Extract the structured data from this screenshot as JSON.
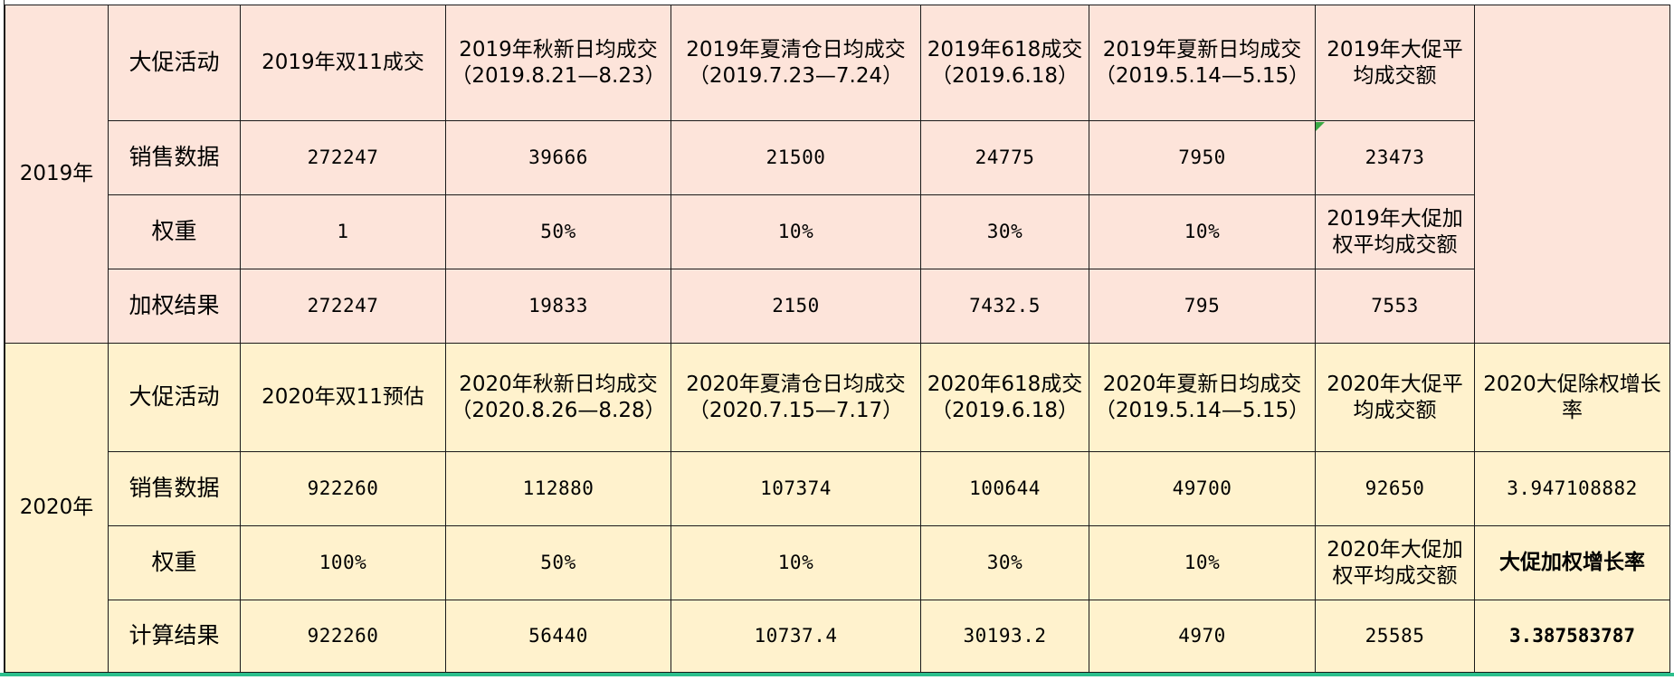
{
  "section_2019": {
    "year": "2019年",
    "activity_row": {
      "label": "大促活动",
      "cells": [
        "2019年双11成交",
        "2019年秋新日均成交（2019.8.21—8.23）",
        "2019年夏清仓日均成交（2019.7.23—7.24）",
        "2019年618成交（2019.6.18）",
        "2019年夏新日均成交（2019.5.14—5.15）",
        "2019年大促平均成交额"
      ]
    },
    "sales_row": {
      "label": "销售数据",
      "cells": [
        "272247",
        "39666",
        "21500",
        "24775",
        "7950",
        "23473"
      ]
    },
    "weight_row": {
      "label": "权重",
      "cells": [
        "1",
        "50%",
        "10%",
        "30%",
        "10%",
        "2019年大促加权平均成交额"
      ]
    },
    "result_row": {
      "label": "加权结果",
      "cells": [
        "272247",
        "19833",
        "2150",
        "7432.5",
        "795",
        "7553"
      ]
    }
  },
  "section_2020": {
    "year": "2020年",
    "activity_row": {
      "label": "大促活动",
      "cells": [
        "2020年双11预估",
        "2020年秋新日均成交（2020.8.26—8.28）",
        "2020年夏清仓日均成交（2020.7.15—7.17）",
        "2020年618成交（2019.6.18）",
        "2020年夏新日均成交（2019.5.14—5.15）",
        "2020年大促平均成交额",
        "2020大促除权增长率"
      ]
    },
    "sales_row": {
      "label": "销售数据",
      "cells": [
        "922260",
        "112880",
        "107374",
        "100644",
        "49700",
        "92650",
        "3.947108882"
      ]
    },
    "weight_row": {
      "label": "权重",
      "cells": [
        "100%",
        "50%",
        "10%",
        "30%",
        "10%",
        "2020年大促加权平均成交额",
        "大促加权增长率"
      ]
    },
    "result_row": {
      "label": "计算结果",
      "cells": [
        "922260",
        "56440",
        "10737.4",
        "30193.2",
        "4970",
        "25585",
        "3.387583787"
      ]
    }
  },
  "colors": {
    "section_2019_fill": "#fde4da",
    "section_2020_fill": "#fff2cd",
    "grid_line": "#1a1a1a",
    "bottom_accent": "#2bbf8c",
    "cell_marker": "#3aa845"
  }
}
